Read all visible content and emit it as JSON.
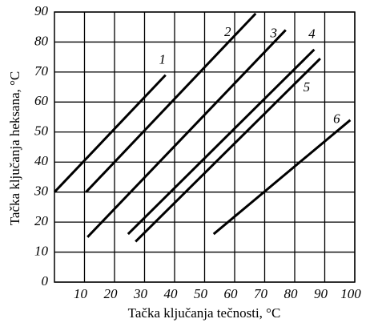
{
  "chart_data": {
    "type": "line",
    "xlabel": "Tačka ključanja tečnosti, °C",
    "ylabel": "Tačka ključanja heksana, °C",
    "xlim": [
      0,
      100
    ],
    "ylim": [
      0,
      90
    ],
    "xticks": [
      10,
      20,
      30,
      40,
      50,
      60,
      70,
      80,
      90,
      100
    ],
    "yticks": [
      0,
      10,
      20,
      30,
      40,
      50,
      60,
      70,
      80,
      90
    ],
    "grid": true,
    "series": [
      {
        "name": "1",
        "color": "#000000",
        "x": [
          0,
          37
        ],
        "values": [
          30,
          69
        ]
      },
      {
        "name": "2",
        "color": "#000000",
        "x": [
          10.5,
          67
        ],
        "values": [
          30,
          89.5
        ]
      },
      {
        "name": "3",
        "color": "#000000",
        "x": [
          11,
          77
        ],
        "values": [
          15,
          84
        ]
      },
      {
        "name": "4",
        "color": "#000000",
        "x": [
          24.5,
          86.5
        ],
        "values": [
          16,
          77.5
        ]
      },
      {
        "name": "5",
        "color": "#000000",
        "x": [
          27,
          88.5
        ],
        "values": [
          13.5,
          74.5
        ]
      },
      {
        "name": "6",
        "color": "#000000",
        "x": [
          53,
          98.5
        ],
        "values": [
          16,
          54
        ]
      }
    ]
  }
}
